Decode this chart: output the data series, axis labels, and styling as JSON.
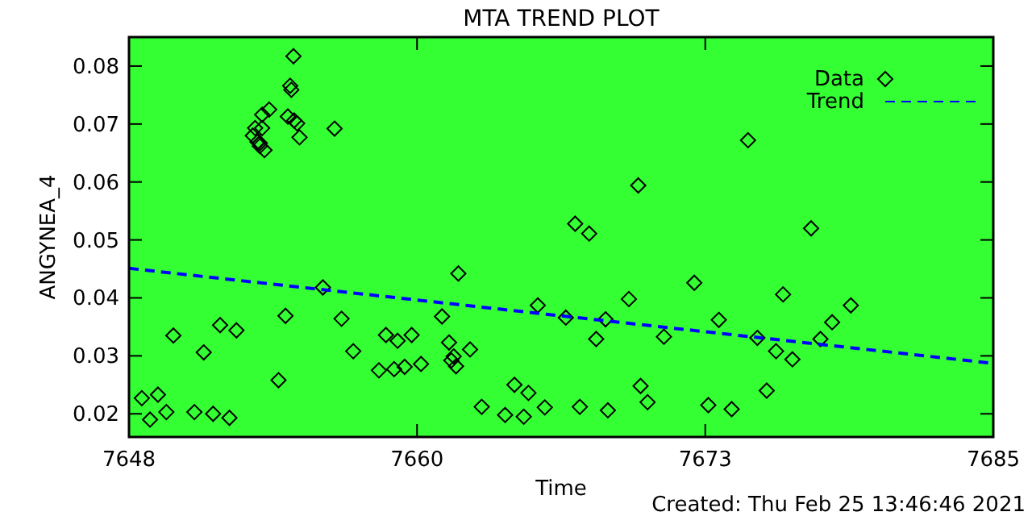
{
  "chart_data": {
    "type": "scatter",
    "title": "MTA TREND PLOT",
    "xlabel": "Time",
    "ylabel": "ANGYNEA_4",
    "annotations": [
      "Created: Thu Feb 25 13:46:46 2021"
    ],
    "xlim": [
      7648,
      7685
    ],
    "xticks": [
      7648,
      {
        "value": 7660.33,
        "label": "7660"
      },
      {
        "value": 7672.67,
        "label": "7673"
      },
      7685
    ],
    "ylim": [
      0.016,
      0.085
    ],
    "yticks": [
      {
        "value": 0.02,
        "label": "0.02"
      },
      {
        "value": 0.03,
        "label": "0.03"
      },
      {
        "value": 0.04,
        "label": "0.04"
      },
      {
        "value": 0.05,
        "label": "0.05"
      },
      {
        "value": 0.06,
        "label": "0.06"
      },
      {
        "value": 0.07,
        "label": "0.07"
      },
      {
        "value": 0.08,
        "label": "0.08"
      }
    ],
    "grid": false,
    "legend": "top right",
    "series": [
      {
        "name": "Data",
        "marker": "diamond",
        "color": "#000000",
        "x": [
          7648.55,
          7648.9,
          7649.24,
          7649.6,
          7649.9,
          7650.8,
          7651.2,
          7651.6,
          7651.9,
          7652.3,
          7652.6,
          7653.3,
          7653.4,
          7653.5,
          7653.6,
          7653.6,
          7653.7,
          7653.7,
          7653.8,
          7654.0,
          7654.4,
          7654.7,
          7654.8,
          7654.9,
          7654.95,
          7655.04,
          7655.07,
          7655.2,
          7655.3,
          7656.3,
          7656.8,
          7657.1,
          7657.6,
          7658.7,
          7659.0,
          7659.35,
          7659.5,
          7659.8,
          7660.1,
          7660.5,
          7661.4,
          7661.7,
          7661.8,
          7661.9,
          7662.0,
          7662.1,
          7662.6,
          7663.1,
          7664.1,
          7664.5,
          7664.9,
          7665.1,
          7665.5,
          7665.8,
          7666.7,
          7667.1,
          7667.3,
          7667.7,
          7668.0,
          7668.4,
          7668.5,
          7669.4,
          7669.8,
          7669.9,
          7670.2,
          7670.9,
          7672.2,
          7672.8,
          7673.25,
          7673.8,
          7674.5,
          7674.9,
          7675.3,
          7675.7,
          7676.0,
          7676.4,
          7677.2,
          7677.6,
          7678.1,
          7678.9
        ],
        "values": [
          0.0227,
          0.019,
          0.0233,
          0.0203,
          0.0335,
          0.0203,
          0.0306,
          0.02,
          0.0353,
          0.0193,
          0.0344,
          0.068,
          0.0693,
          0.0669,
          0.0667,
          0.0662,
          0.0716,
          0.0693,
          0.0655,
          0.0725,
          0.0258,
          0.0369,
          0.0713,
          0.0766,
          0.0759,
          0.0817,
          0.0706,
          0.0701,
          0.0677,
          0.0418,
          0.0692,
          0.0364,
          0.0308,
          0.0275,
          0.0336,
          0.0277,
          0.0326,
          0.0281,
          0.0336,
          0.0286,
          0.0368,
          0.0323,
          0.0292,
          0.0299,
          0.0282,
          0.0442,
          0.0311,
          0.0212,
          0.0198,
          0.025,
          0.0195,
          0.0236,
          0.0387,
          0.0211,
          0.0366,
          0.0528,
          0.0212,
          0.0511,
          0.0329,
          0.0363,
          0.0206,
          0.0398,
          0.0594,
          0.0248,
          0.022,
          0.0333,
          0.0426,
          0.0215,
          0.0362,
          0.0208,
          0.0672,
          0.0331,
          0.024,
          0.0308,
          0.0406,
          0.0294,
          0.052,
          0.0329,
          0.0358,
          0.0387
        ]
      },
      {
        "name": "Trend",
        "type": "line",
        "marker": "none",
        "line_style": "dashed",
        "color": "#0000ff",
        "x": [
          7648,
          7685
        ],
        "values": [
          0.0451,
          0.0287
        ]
      }
    ]
  }
}
